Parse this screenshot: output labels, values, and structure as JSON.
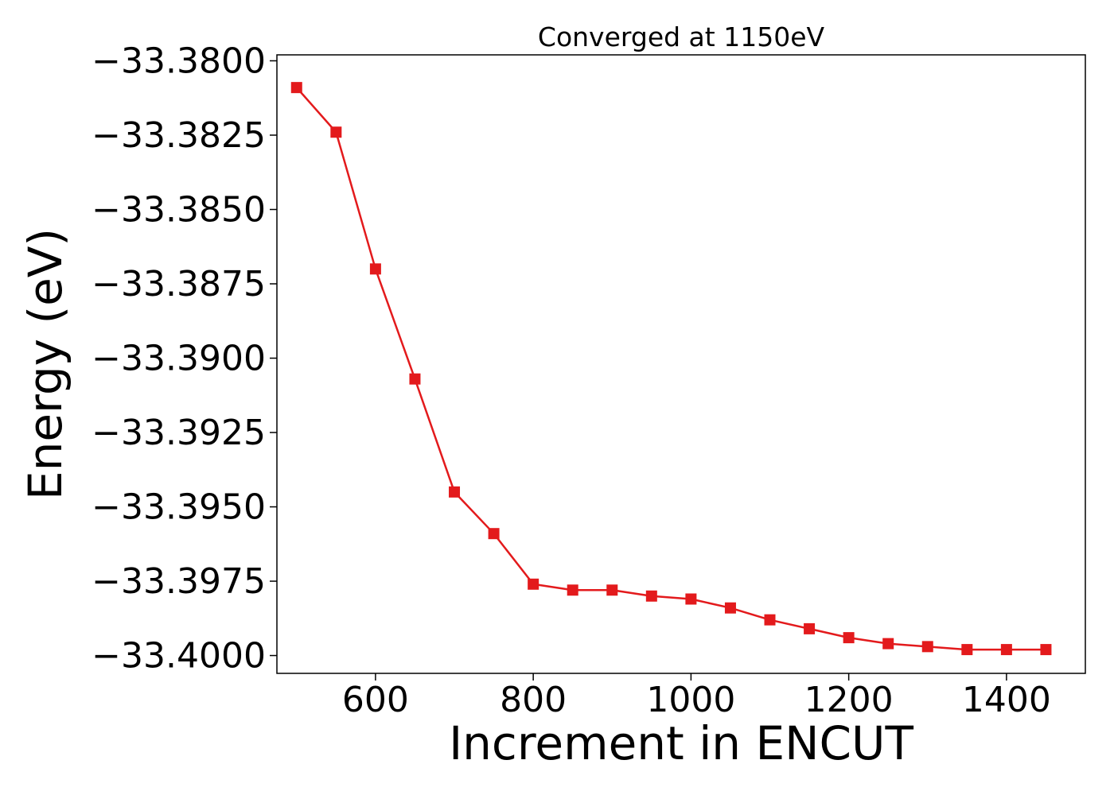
{
  "chart_data": {
    "type": "line",
    "title": "Converged at 1150eV",
    "xlabel": "Increment in ENCUT",
    "ylabel": "Energy (eV)",
    "xlim": [
      475,
      1500
    ],
    "ylim": [
      -33.4006,
      -33.3798
    ],
    "x_ticks": [
      600,
      800,
      1000,
      1200,
      1400
    ],
    "x_tick_labels": [
      "600",
      "800",
      "1000",
      "1200",
      "1400"
    ],
    "y_ticks": [
      -33.38,
      -33.3825,
      -33.385,
      -33.3875,
      -33.39,
      -33.3925,
      -33.395,
      -33.3975,
      -33.4
    ],
    "y_tick_labels": [
      "−33.3800",
      "−33.3825",
      "−33.3850",
      "−33.3875",
      "−33.3900",
      "−33.3925",
      "−33.3950",
      "−33.3975",
      "−33.4000"
    ],
    "grid": false,
    "legend": "none",
    "series": [
      {
        "color": "#e31a1c",
        "marker": "square",
        "x": [
          500,
          550,
          600,
          650,
          700,
          750,
          800,
          850,
          900,
          950,
          1000,
          1050,
          1100,
          1150,
          1200,
          1250,
          1300,
          1350,
          1400,
          1450
        ],
        "y": [
          -33.3809,
          -33.3824,
          -33.387,
          -33.3907,
          -33.3945,
          -33.3959,
          -33.3976,
          -33.3978,
          -33.3978,
          -33.398,
          -33.3981,
          -33.3984,
          -33.3988,
          -33.3991,
          -33.3994,
          -33.3996,
          -33.3997,
          -33.3998,
          -33.3998,
          -33.3998
        ]
      }
    ]
  }
}
